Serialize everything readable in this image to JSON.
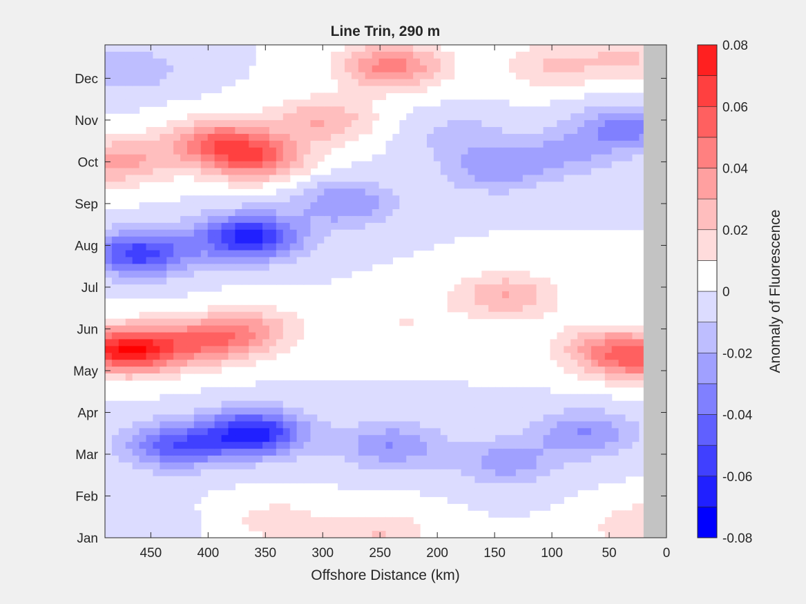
{
  "chart_data": {
    "type": "filled-contour",
    "title": "Line Trin, 290 m",
    "xlabel": "Offshore Distance (km)",
    "ylabel": "",
    "xlim": [
      490,
      0
    ],
    "x_direction": "reversed",
    "xticks": [
      450,
      400,
      350,
      300,
      250,
      200,
      150,
      100,
      50,
      0
    ],
    "xtick_labels": [
      "450",
      "400",
      "350",
      "300",
      "250",
      "200",
      "150",
      "100",
      "50",
      "0"
    ],
    "yticks": [
      "Jan",
      "Feb",
      "Mar",
      "Apr",
      "May",
      "Jun",
      "Jul",
      "Aug",
      "Sep",
      "Oct",
      "Nov",
      "Dec"
    ],
    "colorbar": {
      "label": "Anomaly of Fluorescence",
      "range": [
        -0.08,
        0.08
      ],
      "levels": [
        -0.08,
        -0.07,
        -0.06,
        -0.05,
        -0.04,
        -0.03,
        -0.02,
        -0.01,
        0,
        0.01,
        0.02,
        0.03,
        0.04,
        0.05,
        0.06,
        0.07,
        0.08
      ],
      "tick_labels": [
        "0.08",
        "0.06",
        "0.04",
        "0.02",
        "0",
        "-0.02",
        "-0.04",
        "-0.06",
        "-0.08"
      ],
      "colors": [
        "#0000ff",
        "#2020ff",
        "#4040ff",
        "#6060ff",
        "#8080ff",
        "#a0a0ff",
        "#bebeff",
        "#dcdcff",
        "#ffffff",
        "#ffffff",
        "#ffdcdc",
        "#ffbebe",
        "#ffa0a0",
        "#ff8080",
        "#ff6060",
        "#ff4040",
        "#ff2020",
        "#ff0000"
      ]
    },
    "no_data_color": "#c3c3c3",
    "no_data_region_km": [
      0,
      20
    ],
    "anomaly_features": [
      {
        "x": 470,
        "y": 4.5,
        "value": 0.08
      },
      {
        "x": 400,
        "y": 4.7,
        "value": 0.04
      },
      {
        "x": 360,
        "y": 5.0,
        "value": 0.025
      },
      {
        "x": 230,
        "y": 5.2,
        "value": 0.01
      },
      {
        "x": 25,
        "y": 4.3,
        "value": 0.05
      },
      {
        "x": 60,
        "y": 4.6,
        "value": 0.02
      },
      {
        "x": 140,
        "y": 5.8,
        "value": 0.03
      },
      {
        "x": 460,
        "y": 6.8,
        "value": -0.055
      },
      {
        "x": 365,
        "y": 7.2,
        "value": -0.065
      },
      {
        "x": 280,
        "y": 8.0,
        "value": -0.03
      },
      {
        "x": 150,
        "y": 8.8,
        "value": -0.025
      },
      {
        "x": 180,
        "y": 9.6,
        "value": -0.015
      },
      {
        "x": 430,
        "y": 2.2,
        "value": -0.045
      },
      {
        "x": 360,
        "y": 2.5,
        "value": -0.065
      },
      {
        "x": 240,
        "y": 2.2,
        "value": -0.03
      },
      {
        "x": 140,
        "y": 1.8,
        "value": -0.025
      },
      {
        "x": 70,
        "y": 2.5,
        "value": -0.03
      },
      {
        "x": 395,
        "y": 9.5,
        "value": 0.04
      },
      {
        "x": 360,
        "y": 9.1,
        "value": 0.05
      },
      {
        "x": 480,
        "y": 9.0,
        "value": 0.035
      },
      {
        "x": 300,
        "y": 10.0,
        "value": 0.03
      },
      {
        "x": 240,
        "y": 11.3,
        "value": 0.045
      },
      {
        "x": 100,
        "y": 11.3,
        "value": 0.02
      },
      {
        "x": 30,
        "y": 11.5,
        "value": 0.02
      },
      {
        "x": 470,
        "y": 11.2,
        "value": -0.02
      },
      {
        "x": 35,
        "y": 9.8,
        "value": -0.035
      },
      {
        "x": 90,
        "y": 9.2,
        "value": -0.02
      },
      {
        "x": 250,
        "y": 0.1,
        "value": 0.02
      },
      {
        "x": 340,
        "y": 0.4,
        "value": 0.015
      },
      {
        "x": 20,
        "y": 0.3,
        "value": 0.02
      },
      {
        "x": 470,
        "y": 0.3,
        "value": -0.01
      }
    ]
  }
}
